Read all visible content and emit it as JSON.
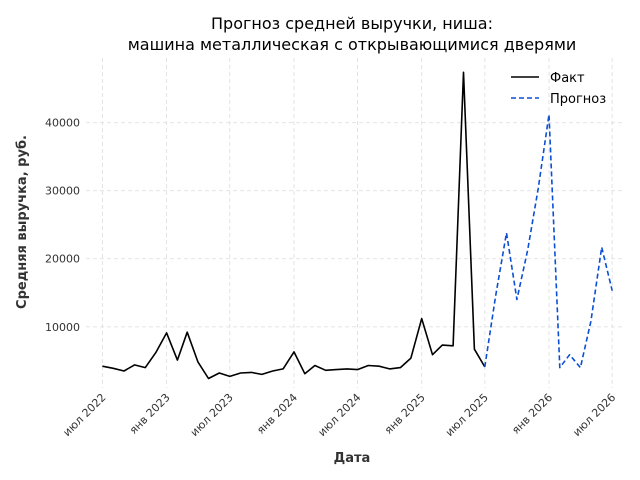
{
  "chart_data": {
    "type": "line",
    "title": [
      "Прогноз средней выручки, ниша:",
      "машина металлическая с открывающимися дверями"
    ],
    "xlabel": "Дата",
    "ylabel": "Средняя выручка, руб.",
    "xlim": [
      "2022-05-15",
      "2026-08-01"
    ],
    "ylim": [
      1000,
      49500
    ],
    "grid": true,
    "legend_position": "top-right",
    "x_ticks": [
      {
        "date": "2022-07-01",
        "label": "июл 2022"
      },
      {
        "date": "2023-01-01",
        "label": "янв 2023"
      },
      {
        "date": "2023-07-01",
        "label": "июл 2023"
      },
      {
        "date": "2024-01-01",
        "label": "янв 2024"
      },
      {
        "date": "2024-07-01",
        "label": "июл 2024"
      },
      {
        "date": "2025-01-01",
        "label": "янв 2025"
      },
      {
        "date": "2025-07-01",
        "label": "июл 2025"
      },
      {
        "date": "2026-01-01",
        "label": "янв 2026"
      },
      {
        "date": "2026-07-01",
        "label": "июл 2026"
      }
    ],
    "y_ticks": [
      {
        "value": 10000,
        "label": "10000"
      },
      {
        "value": 20000,
        "label": "20000"
      },
      {
        "value": 30000,
        "label": "30000"
      },
      {
        "value": 40000,
        "label": "40000"
      }
    ],
    "series": [
      {
        "name": "Факт",
        "color": "#000000",
        "style": "solid",
        "x": [
          "2022-07-01",
          "2022-08-01",
          "2022-09-01",
          "2022-10-01",
          "2022-11-01",
          "2022-12-01",
          "2023-01-01",
          "2023-02-01",
          "2023-03-01",
          "2023-04-01",
          "2023-05-01",
          "2023-06-01",
          "2023-07-01",
          "2023-08-01",
          "2023-09-01",
          "2023-10-01",
          "2023-11-01",
          "2023-12-01",
          "2024-01-01",
          "2024-02-01",
          "2024-03-01",
          "2024-04-01",
          "2024-05-01",
          "2024-06-01",
          "2024-07-01",
          "2024-08-01",
          "2024-09-01",
          "2024-10-01",
          "2024-11-01",
          "2024-12-01",
          "2025-01-01",
          "2025-02-01",
          "2025-03-01",
          "2025-04-01",
          "2025-05-01",
          "2025-06-01",
          "2025-07-01"
        ],
        "values": [
          4200,
          3900,
          3500,
          4400,
          4000,
          6200,
          9100,
          5100,
          9200,
          4800,
          2400,
          3200,
          2700,
          3200,
          3300,
          3000,
          3500,
          3800,
          6300,
          3100,
          4300,
          3600,
          3700,
          3800,
          3700,
          4300,
          4200,
          3800,
          4000,
          5400,
          11200,
          5900,
          7300,
          7200,
          47400,
          6700,
          4100
        ]
      },
      {
        "name": "Прогноз",
        "color": "#0b4fd6",
        "style": "dashed",
        "x": [
          "2025-07-01",
          "2025-08-01",
          "2025-09-01",
          "2025-10-01",
          "2025-11-01",
          "2025-12-01",
          "2026-01-01",
          "2026-02-01",
          "2026-03-01",
          "2026-04-01",
          "2026-05-01",
          "2026-06-01",
          "2026-07-01"
        ],
        "values": [
          4100,
          14500,
          23800,
          14000,
          21300,
          30300,
          41200,
          4000,
          5900,
          4000,
          10800,
          21700,
          15300
        ]
      }
    ]
  }
}
